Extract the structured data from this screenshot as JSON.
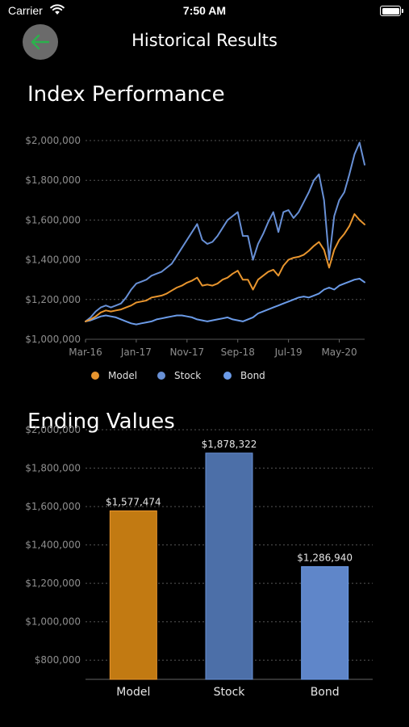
{
  "status": {
    "carrier": "Carrier",
    "time": "7:50 AM"
  },
  "header": {
    "title": "Historical Results"
  },
  "icons": {
    "back": "arrow-left-icon",
    "wifi": "wifi-icon",
    "battery": "battery-icon"
  },
  "colors": {
    "model": "#E8952E",
    "stock": "#6890D6",
    "bond": "#6B9BE8",
    "back_arrow": "#2BB24C"
  },
  "chart_data": [
    {
      "type": "line",
      "title": "Index Performance",
      "ylim": [
        1000000,
        2000000
      ],
      "yticks": [
        1000000,
        1200000,
        1400000,
        1600000,
        1800000,
        2000000
      ],
      "ytick_labels": [
        "$1,000,000",
        "$1,200,000",
        "$1,400,000",
        "$1,600,000",
        "$1,800,000",
        "$2,000,000"
      ],
      "xlim": [
        "2016-03",
        "2020-10"
      ],
      "xticks": [
        "2016-03",
        "2017-01",
        "2017-11",
        "2018-09",
        "2019-07",
        "2020-05"
      ],
      "xtick_labels": [
        "Mar-16",
        "Jan-17",
        "Nov-17",
        "Sep-18",
        "Jul-19",
        "May-20"
      ],
      "grid": true,
      "legend_position": "bottom",
      "x": [
        "2016-03",
        "2016-04",
        "2016-05",
        "2016-06",
        "2016-07",
        "2016-08",
        "2016-09",
        "2016-10",
        "2016-11",
        "2016-12",
        "2017-01",
        "2017-02",
        "2017-03",
        "2017-04",
        "2017-05",
        "2017-06",
        "2017-07",
        "2017-08",
        "2017-09",
        "2017-10",
        "2017-11",
        "2017-12",
        "2018-01",
        "2018-02",
        "2018-03",
        "2018-04",
        "2018-05",
        "2018-06",
        "2018-07",
        "2018-08",
        "2018-09",
        "2018-10",
        "2018-11",
        "2018-12",
        "2019-01",
        "2019-02",
        "2019-03",
        "2019-04",
        "2019-05",
        "2019-06",
        "2019-07",
        "2019-08",
        "2019-09",
        "2019-10",
        "2019-11",
        "2019-12",
        "2020-01",
        "2020-02",
        "2020-03",
        "2020-04",
        "2020-05",
        "2020-06",
        "2020-07",
        "2020-08",
        "2020-09",
        "2020-10"
      ],
      "series": [
        {
          "name": "Model",
          "values": [
            1090000,
            1100000,
            1115000,
            1135000,
            1145000,
            1140000,
            1145000,
            1150000,
            1160000,
            1170000,
            1185000,
            1190000,
            1195000,
            1210000,
            1215000,
            1220000,
            1230000,
            1245000,
            1260000,
            1270000,
            1285000,
            1295000,
            1310000,
            1270000,
            1275000,
            1270000,
            1280000,
            1300000,
            1310000,
            1330000,
            1345000,
            1300000,
            1300000,
            1250000,
            1300000,
            1320000,
            1340000,
            1350000,
            1320000,
            1370000,
            1400000,
            1410000,
            1415000,
            1425000,
            1445000,
            1470000,
            1490000,
            1450000,
            1360000,
            1450000,
            1500000,
            1530000,
            1570000,
            1630000,
            1600000,
            1577474
          ]
        },
        {
          "name": "Stock",
          "values": [
            1090000,
            1110000,
            1140000,
            1160000,
            1170000,
            1160000,
            1170000,
            1180000,
            1210000,
            1250000,
            1280000,
            1290000,
            1300000,
            1320000,
            1330000,
            1340000,
            1360000,
            1380000,
            1420000,
            1460000,
            1500000,
            1540000,
            1580000,
            1500000,
            1480000,
            1490000,
            1520000,
            1560000,
            1600000,
            1620000,
            1640000,
            1520000,
            1520000,
            1400000,
            1480000,
            1530000,
            1590000,
            1640000,
            1540000,
            1640000,
            1650000,
            1610000,
            1640000,
            1690000,
            1740000,
            1800000,
            1830000,
            1700000,
            1400000,
            1620000,
            1700000,
            1740000,
            1830000,
            1930000,
            1990000,
            1878322
          ]
        },
        {
          "name": "Bond",
          "values": [
            1090000,
            1095000,
            1105000,
            1115000,
            1120000,
            1115000,
            1110000,
            1100000,
            1090000,
            1080000,
            1075000,
            1080000,
            1085000,
            1090000,
            1100000,
            1105000,
            1110000,
            1115000,
            1120000,
            1120000,
            1115000,
            1110000,
            1100000,
            1095000,
            1090000,
            1095000,
            1100000,
            1105000,
            1110000,
            1100000,
            1095000,
            1090000,
            1100000,
            1110000,
            1130000,
            1140000,
            1150000,
            1160000,
            1170000,
            1180000,
            1190000,
            1200000,
            1210000,
            1215000,
            1210000,
            1220000,
            1230000,
            1250000,
            1260000,
            1250000,
            1270000,
            1280000,
            1290000,
            1300000,
            1305000,
            1286940
          ]
        }
      ]
    },
    {
      "type": "bar",
      "title": "Ending Values",
      "categories": [
        "Model",
        "Stock",
        "Bond"
      ],
      "values": [
        1577474,
        1878322,
        1286940
      ],
      "value_labels": [
        "$1,577,474",
        "$1,878,322",
        "$1,286,940"
      ],
      "ylim": [
        700000,
        2000000
      ],
      "yticks": [
        800000,
        1000000,
        1200000,
        1400000,
        1600000,
        1800000,
        2000000
      ],
      "ytick_labels": [
        "$800,000",
        "$1,000,000",
        "$1,200,000",
        "$1,400,000",
        "$1,600,000",
        "$1,800,000",
        "$2,000,000"
      ],
      "grid": true
    }
  ]
}
